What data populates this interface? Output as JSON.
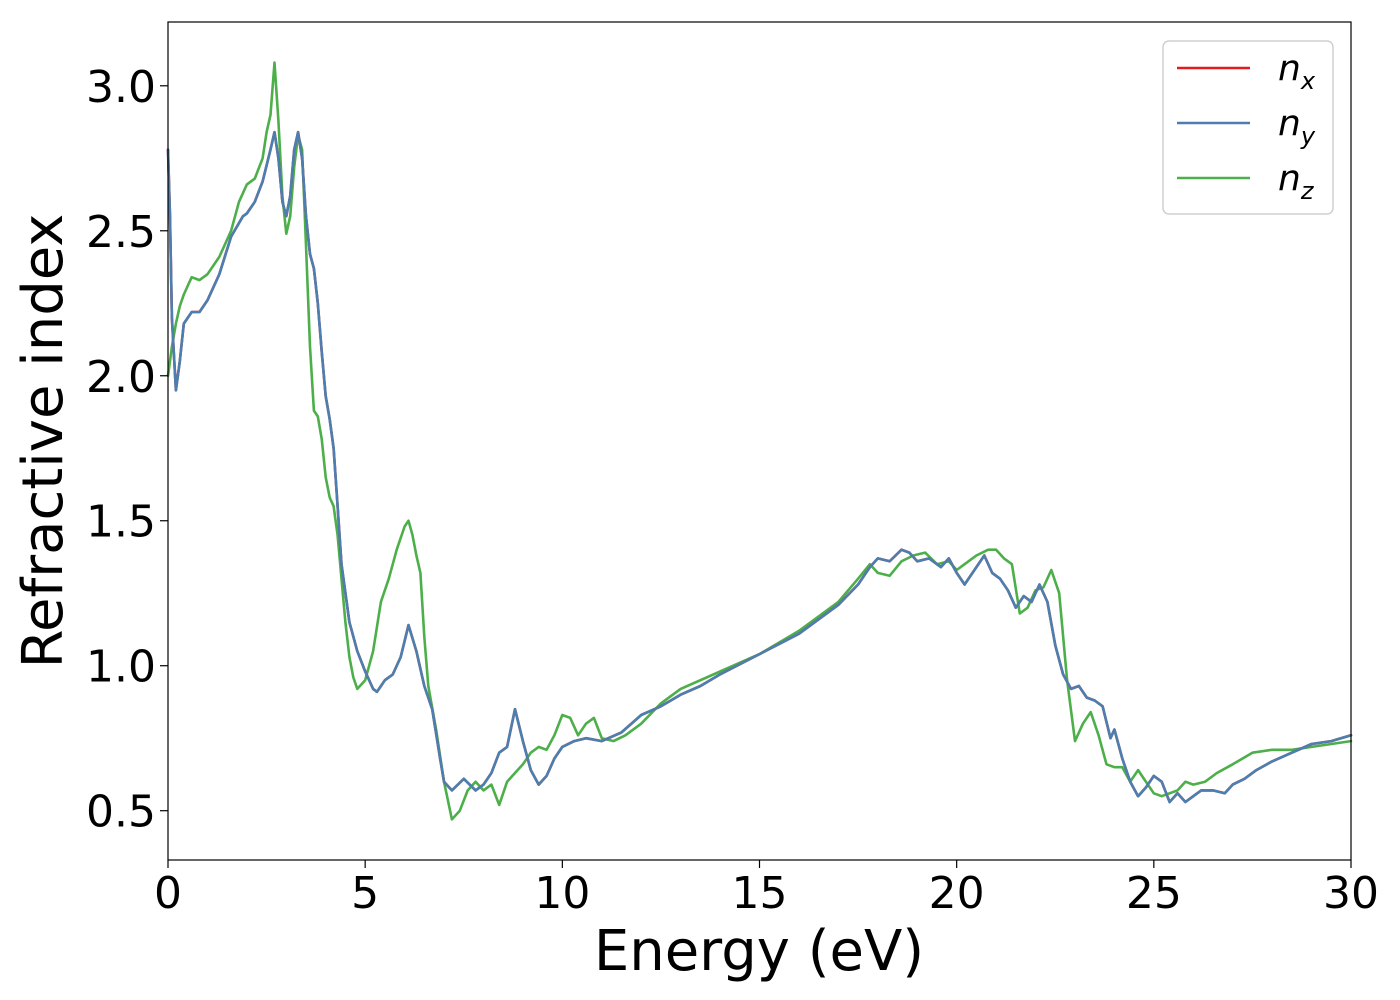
{
  "chart_data": {
    "type": "line",
    "title": "",
    "xlabel": "Energy (eV)",
    "ylabel": "Refractive index",
    "xlim": [
      0,
      30
    ],
    "ylim": [
      0.33,
      3.22
    ],
    "xticks": [
      0,
      5,
      10,
      15,
      20,
      25,
      30
    ],
    "xtick_labels": [
      "0",
      "5",
      "10",
      "15",
      "20",
      "25",
      "30"
    ],
    "yticks": [
      0.5,
      1.0,
      1.5,
      2.0,
      2.5,
      3.0
    ],
    "ytick_labels": [
      "0.5",
      "1.0",
      "1.5",
      "2.0",
      "2.5",
      "3.0"
    ],
    "grid": false,
    "legend_position": "top-right",
    "series": [
      {
        "name": "n",
        "subscript": "x",
        "color": "#e41a1c",
        "x": [
          0,
          0.05,
          0.1,
          0.2,
          0.3,
          0.4,
          0.6,
          0.8,
          1.0,
          1.3,
          1.6,
          1.9,
          2.0,
          2.2,
          2.4,
          2.6,
          2.7,
          2.8,
          2.9,
          3.0,
          3.1,
          3.2,
          3.3,
          3.4,
          3.5,
          3.6,
          3.7,
          3.8,
          3.9,
          4.0,
          4.1,
          4.2,
          4.3,
          4.4,
          4.6,
          4.8,
          5.0,
          5.2,
          5.3,
          5.5,
          5.7,
          5.9,
          6.1,
          6.3,
          6.5,
          6.7,
          6.9,
          7.0,
          7.2,
          7.5,
          7.8,
          8.0,
          8.2,
          8.4,
          8.6,
          8.8,
          9.0,
          9.2,
          9.4,
          9.6,
          9.8,
          10.0,
          10.3,
          10.6,
          11.0,
          11.5,
          12.0,
          12.5,
          13.0,
          13.5,
          14.0,
          15.0,
          16.0,
          17.0,
          17.5,
          17.8,
          18.0,
          18.3,
          18.6,
          18.8,
          19.0,
          19.3,
          19.6,
          19.8,
          20.0,
          20.2,
          20.5,
          20.7,
          20.9,
          21.1,
          21.3,
          21.5,
          21.7,
          21.9,
          22.1,
          22.3,
          22.5,
          22.7,
          22.9,
          23.1,
          23.3,
          23.5,
          23.7,
          23.9,
          24.0,
          24.2,
          24.4,
          24.6,
          24.8,
          25.0,
          25.2,
          25.4,
          25.6,
          25.8,
          26.0,
          26.2,
          26.5,
          26.8,
          27.0,
          27.3,
          27.6,
          28.0,
          28.5,
          29.0,
          29.5,
          30.0
        ],
        "y": [
          2.78,
          2.55,
          2.2,
          1.95,
          2.05,
          2.18,
          2.22,
          2.22,
          2.26,
          2.35,
          2.48,
          2.55,
          2.56,
          2.6,
          2.67,
          2.78,
          2.84,
          2.75,
          2.6,
          2.55,
          2.62,
          2.78,
          2.84,
          2.75,
          2.55,
          2.42,
          2.37,
          2.25,
          2.08,
          1.93,
          1.85,
          1.75,
          1.55,
          1.35,
          1.15,
          1.05,
          0.98,
          0.92,
          0.91,
          0.95,
          0.97,
          1.03,
          1.14,
          1.05,
          0.93,
          0.85,
          0.68,
          0.6,
          0.57,
          0.61,
          0.57,
          0.59,
          0.63,
          0.7,
          0.72,
          0.85,
          0.74,
          0.64,
          0.59,
          0.62,
          0.68,
          0.72,
          0.74,
          0.75,
          0.74,
          0.77,
          0.83,
          0.86,
          0.9,
          0.93,
          0.97,
          1.04,
          1.11,
          1.21,
          1.28,
          1.34,
          1.37,
          1.36,
          1.4,
          1.39,
          1.36,
          1.37,
          1.34,
          1.37,
          1.32,
          1.28,
          1.34,
          1.38,
          1.32,
          1.3,
          1.26,
          1.2,
          1.24,
          1.22,
          1.28,
          1.22,
          1.07,
          0.97,
          0.92,
          0.93,
          0.89,
          0.88,
          0.86,
          0.75,
          0.78,
          0.68,
          0.6,
          0.55,
          0.58,
          0.62,
          0.6,
          0.53,
          0.56,
          0.53,
          0.55,
          0.57,
          0.57,
          0.56,
          0.59,
          0.61,
          0.64,
          0.67,
          0.7,
          0.73,
          0.74,
          0.76
        ]
      },
      {
        "name": "n",
        "subscript": "y",
        "color": "#4a7fb0",
        "x": [
          0,
          0.05,
          0.1,
          0.2,
          0.3,
          0.4,
          0.6,
          0.8,
          1.0,
          1.3,
          1.6,
          1.9,
          2.0,
          2.2,
          2.4,
          2.6,
          2.7,
          2.8,
          2.9,
          3.0,
          3.1,
          3.2,
          3.3,
          3.4,
          3.5,
          3.6,
          3.7,
          3.8,
          3.9,
          4.0,
          4.1,
          4.2,
          4.3,
          4.4,
          4.6,
          4.8,
          5.0,
          5.2,
          5.3,
          5.5,
          5.7,
          5.9,
          6.1,
          6.3,
          6.5,
          6.7,
          6.9,
          7.0,
          7.2,
          7.5,
          7.8,
          8.0,
          8.2,
          8.4,
          8.6,
          8.8,
          9.0,
          9.2,
          9.4,
          9.6,
          9.8,
          10.0,
          10.3,
          10.6,
          11.0,
          11.5,
          12.0,
          12.5,
          13.0,
          13.5,
          14.0,
          15.0,
          16.0,
          17.0,
          17.5,
          17.8,
          18.0,
          18.3,
          18.6,
          18.8,
          19.0,
          19.3,
          19.6,
          19.8,
          20.0,
          20.2,
          20.5,
          20.7,
          20.9,
          21.1,
          21.3,
          21.5,
          21.7,
          21.9,
          22.1,
          22.3,
          22.5,
          22.7,
          22.9,
          23.1,
          23.3,
          23.5,
          23.7,
          23.9,
          24.0,
          24.2,
          24.4,
          24.6,
          24.8,
          25.0,
          25.2,
          25.4,
          25.6,
          25.8,
          26.0,
          26.2,
          26.5,
          26.8,
          27.0,
          27.3,
          27.6,
          28.0,
          28.5,
          29.0,
          29.5,
          30.0
        ],
        "y": [
          2.78,
          2.55,
          2.2,
          1.95,
          2.05,
          2.18,
          2.22,
          2.22,
          2.26,
          2.35,
          2.48,
          2.55,
          2.56,
          2.6,
          2.67,
          2.78,
          2.84,
          2.75,
          2.6,
          2.55,
          2.62,
          2.78,
          2.84,
          2.75,
          2.55,
          2.42,
          2.37,
          2.25,
          2.08,
          1.93,
          1.85,
          1.75,
          1.55,
          1.35,
          1.15,
          1.05,
          0.98,
          0.92,
          0.91,
          0.95,
          0.97,
          1.03,
          1.14,
          1.05,
          0.93,
          0.85,
          0.68,
          0.6,
          0.57,
          0.61,
          0.57,
          0.59,
          0.63,
          0.7,
          0.72,
          0.85,
          0.74,
          0.64,
          0.59,
          0.62,
          0.68,
          0.72,
          0.74,
          0.75,
          0.74,
          0.77,
          0.83,
          0.86,
          0.9,
          0.93,
          0.97,
          1.04,
          1.11,
          1.21,
          1.28,
          1.34,
          1.37,
          1.36,
          1.4,
          1.39,
          1.36,
          1.37,
          1.34,
          1.37,
          1.32,
          1.28,
          1.34,
          1.38,
          1.32,
          1.3,
          1.26,
          1.2,
          1.24,
          1.22,
          1.28,
          1.22,
          1.07,
          0.97,
          0.92,
          0.93,
          0.89,
          0.88,
          0.86,
          0.75,
          0.78,
          0.68,
          0.6,
          0.55,
          0.58,
          0.62,
          0.6,
          0.53,
          0.56,
          0.53,
          0.55,
          0.57,
          0.57,
          0.56,
          0.59,
          0.61,
          0.64,
          0.67,
          0.7,
          0.73,
          0.74,
          0.76
        ]
      },
      {
        "name": "n",
        "subscript": "z",
        "color": "#4daf4a",
        "x": [
          0,
          0.1,
          0.2,
          0.3,
          0.4,
          0.5,
          0.6,
          0.8,
          1.0,
          1.3,
          1.6,
          1.8,
          2.0,
          2.2,
          2.4,
          2.5,
          2.6,
          2.7,
          2.8,
          2.9,
          3.0,
          3.1,
          3.2,
          3.3,
          3.4,
          3.5,
          3.6,
          3.7,
          3.8,
          3.9,
          4.0,
          4.1,
          4.2,
          4.3,
          4.4,
          4.5,
          4.6,
          4.7,
          4.8,
          5.0,
          5.2,
          5.4,
          5.6,
          5.8,
          6.0,
          6.1,
          6.2,
          6.3,
          6.4,
          6.5,
          6.6,
          6.8,
          7.0,
          7.2,
          7.4,
          7.6,
          7.8,
          8.0,
          8.2,
          8.4,
          8.6,
          8.8,
          9.0,
          9.2,
          9.4,
          9.6,
          9.8,
          10.0,
          10.2,
          10.4,
          10.6,
          10.8,
          11.0,
          11.3,
          11.6,
          12.0,
          12.5,
          13.0,
          14.0,
          15.0,
          16.0,
          17.0,
          17.5,
          17.8,
          18.0,
          18.3,
          18.6,
          18.9,
          19.2,
          19.5,
          19.8,
          20.0,
          20.2,
          20.5,
          20.8,
          21.0,
          21.2,
          21.4,
          21.6,
          21.8,
          22.0,
          22.2,
          22.4,
          22.6,
          22.8,
          23.0,
          23.2,
          23.4,
          23.6,
          23.8,
          24.0,
          24.2,
          24.4,
          24.6,
          24.8,
          25.0,
          25.2,
          25.4,
          25.6,
          25.8,
          26.0,
          26.3,
          26.6,
          27.0,
          27.5,
          28.0,
          28.5,
          29.0,
          29.5,
          30.0
        ],
        "y": [
          2.0,
          2.1,
          2.18,
          2.24,
          2.28,
          2.31,
          2.34,
          2.33,
          2.35,
          2.41,
          2.5,
          2.6,
          2.66,
          2.68,
          2.75,
          2.84,
          2.9,
          3.08,
          2.88,
          2.62,
          2.49,
          2.55,
          2.72,
          2.83,
          2.78,
          2.45,
          2.1,
          1.88,
          1.86,
          1.78,
          1.65,
          1.58,
          1.55,
          1.45,
          1.3,
          1.15,
          1.03,
          0.96,
          0.92,
          0.95,
          1.05,
          1.22,
          1.3,
          1.4,
          1.48,
          1.5,
          1.45,
          1.38,
          1.32,
          1.1,
          0.93,
          0.78,
          0.6,
          0.47,
          0.5,
          0.57,
          0.6,
          0.57,
          0.59,
          0.52,
          0.6,
          0.63,
          0.66,
          0.7,
          0.72,
          0.71,
          0.76,
          0.83,
          0.82,
          0.76,
          0.8,
          0.82,
          0.75,
          0.74,
          0.76,
          0.8,
          0.87,
          0.92,
          0.98,
          1.04,
          1.12,
          1.22,
          1.3,
          1.35,
          1.32,
          1.31,
          1.36,
          1.38,
          1.39,
          1.35,
          1.36,
          1.33,
          1.35,
          1.38,
          1.4,
          1.4,
          1.37,
          1.35,
          1.18,
          1.2,
          1.26,
          1.27,
          1.33,
          1.25,
          0.95,
          0.74,
          0.8,
          0.84,
          0.76,
          0.66,
          0.65,
          0.65,
          0.6,
          0.64,
          0.6,
          0.56,
          0.55,
          0.56,
          0.57,
          0.6,
          0.59,
          0.6,
          0.63,
          0.66,
          0.7,
          0.71,
          0.71,
          0.72,
          0.73,
          0.74
        ]
      }
    ]
  }
}
